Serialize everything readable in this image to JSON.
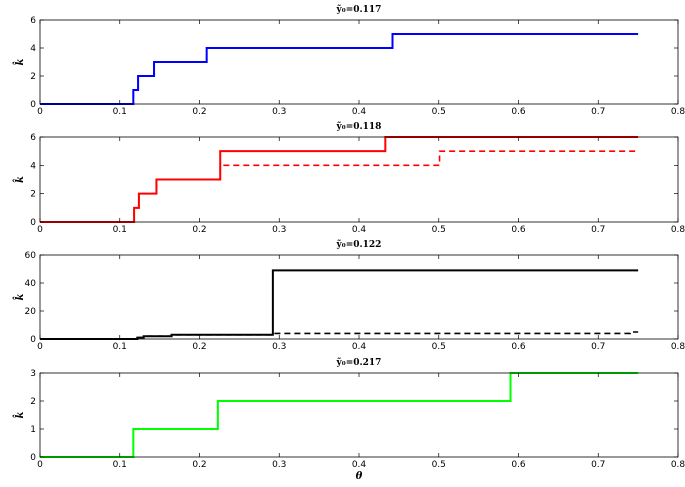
{
  "chart_data": [
    {
      "type": "line",
      "title": "ỹ₀=0.117",
      "xlabel": "",
      "ylabel": "k̂",
      "xlim": [
        0,
        0.8
      ],
      "ylim": [
        0,
        6
      ],
      "xticks": [
        "0",
        "0.1",
        "0.2",
        "0.3",
        "0.4",
        "0.5",
        "0.6",
        "0.7",
        "0.8"
      ],
      "yticks": [
        "0",
        "2",
        "4",
        "6"
      ],
      "color": "#0000ff",
      "series": [
        {
          "style": "solid",
          "x": [
            0,
            0.117,
            0.117,
            0.123,
            0.123,
            0.143,
            0.143,
            0.209,
            0.209,
            0.442,
            0.442,
            0.75
          ],
          "y": [
            0,
            0,
            1,
            1,
            2,
            2,
            3,
            3,
            4,
            4,
            5,
            5
          ]
        },
        {
          "style": "dashed",
          "x": [
            0,
            0.117,
            0.117,
            0.123,
            0.123,
            0.143,
            0.143,
            0.209,
            0.209,
            0.442,
            0.442,
            0.75
          ],
          "y": [
            0,
            0,
            1,
            1,
            2,
            2,
            3,
            3,
            4,
            4,
            5,
            5
          ]
        }
      ]
    },
    {
      "type": "line",
      "title": "ỹ₀=0.118",
      "xlabel": "",
      "ylabel": "k̂",
      "xlim": [
        0,
        0.8
      ],
      "ylim": [
        0,
        6
      ],
      "xticks": [
        "0",
        "0.1",
        "0.2",
        "0.3",
        "0.4",
        "0.5",
        "0.6",
        "0.7",
        "0.8"
      ],
      "yticks": [
        "0",
        "2",
        "4",
        "6"
      ],
      "color": "#ff0000",
      "series": [
        {
          "style": "solid",
          "x": [
            0,
            0.118,
            0.118,
            0.124,
            0.124,
            0.146,
            0.146,
            0.226,
            0.226,
            0.433,
            0.433,
            0.75
          ],
          "y": [
            0,
            0,
            1,
            1,
            2,
            2,
            3,
            3,
            5,
            5,
            6,
            6
          ]
        },
        {
          "style": "dashed",
          "x": [
            0,
            0.118,
            0.118,
            0.124,
            0.124,
            0.146,
            0.146,
            0.226,
            0.226,
            0.501,
            0.501,
            0.75
          ],
          "y": [
            0,
            0,
            1,
            1,
            2,
            2,
            3,
            3,
            4,
            4,
            5,
            5
          ]
        }
      ]
    },
    {
      "type": "line",
      "title": "ỹ₀=0.122",
      "xlabel": "",
      "ylabel": "k̂",
      "xlim": [
        0,
        0.8
      ],
      "ylim": [
        0,
        60
      ],
      "xticks": [
        "0",
        "0.1",
        "0.2",
        "0.3",
        "0.4",
        "0.5",
        "0.6",
        "0.7",
        "0.8"
      ],
      "yticks": [
        "0",
        "20",
        "40",
        "60"
      ],
      "color": "#000000",
      "series": [
        {
          "style": "solid",
          "x": [
            0,
            0.122,
            0.122,
            0.13,
            0.13,
            0.165,
            0.165,
            0.292,
            0.292,
            0.75
          ],
          "y": [
            0,
            0,
            1,
            1,
            2,
            2,
            3,
            3,
            49,
            49
          ]
        },
        {
          "style": "dashed",
          "x": [
            0,
            0.122,
            0.122,
            0.13,
            0.13,
            0.165,
            0.165,
            0.292,
            0.292,
            0.74,
            0.74,
            0.75
          ],
          "y": [
            0,
            0,
            1,
            1,
            2,
            2,
            3,
            3,
            4,
            4,
            5,
            5
          ]
        }
      ]
    },
    {
      "type": "line",
      "title": "ỹ₀=0.217",
      "xlabel": "θ",
      "ylabel": "k̂",
      "xlim": [
        0,
        0.8
      ],
      "ylim": [
        0,
        3
      ],
      "xticks": [
        "0",
        "0.1",
        "0.2",
        "0.3",
        "0.4",
        "0.5",
        "0.6",
        "0.7",
        "0.8"
      ],
      "yticks": [
        "0",
        "1",
        "2",
        "3"
      ],
      "color": "#00ff00",
      "series": [
        {
          "style": "solid",
          "x": [
            0,
            0.117,
            0.117,
            0.223,
            0.223,
            0.59,
            0.59,
            0.75
          ],
          "y": [
            0,
            0,
            1,
            1,
            2,
            2,
            3,
            3
          ]
        },
        {
          "style": "dashed",
          "x": [
            0,
            0.117,
            0.117,
            0.223,
            0.223,
            0.59,
            0.59,
            0.75
          ],
          "y": [
            0,
            0,
            1,
            1,
            2,
            2,
            3,
            3
          ]
        }
      ]
    }
  ]
}
